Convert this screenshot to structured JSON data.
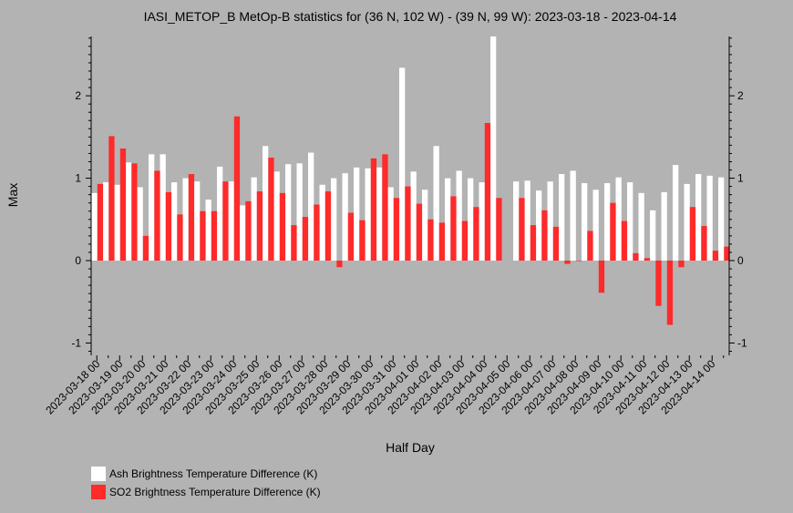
{
  "chart_data": {
    "type": "bar",
    "title": "IASI_METOP_B MetOp-B statistics for (36 N, 102 W) - (39 N, 99 W): 2023-03-18 - 2023-04-14",
    "xlabel": "Half Day",
    "ylabel": "Max",
    "ylim": [
      -1.15,
      2.72
    ],
    "yticks": [
      -1,
      0,
      1,
      2
    ],
    "grid": false,
    "legend_position": "bottom-left",
    "categories": [
      "2023-03-18 00",
      "2023-03-18 12",
      "2023-03-19 00",
      "2023-03-19 12",
      "2023-03-20 00",
      "2023-03-20 12",
      "2023-03-21 00",
      "2023-03-21 12",
      "2023-03-22 00",
      "2023-03-22 12",
      "2023-03-23 00",
      "2023-03-23 12",
      "2023-03-24 00",
      "2023-03-24 12",
      "2023-03-25 00",
      "2023-03-25 12",
      "2023-03-26 00",
      "2023-03-26 12",
      "2023-03-27 00",
      "2023-03-27 12",
      "2023-03-28 00",
      "2023-03-28 12",
      "2023-03-29 00",
      "2023-03-29 12",
      "2023-03-30 00",
      "2023-03-30 12",
      "2023-03-31 00",
      "2023-03-31 12",
      "2023-04-01 00",
      "2023-04-01 12",
      "2023-04-02 00",
      "2023-04-02 12",
      "2023-04-03 00",
      "2023-04-03 12",
      "2023-04-04 00",
      "2023-04-04 12",
      "2023-04-05 00",
      "2023-04-05 12",
      "2023-04-06 00",
      "2023-04-06 12",
      "2023-04-07 00",
      "2023-04-07 12",
      "2023-04-08 00",
      "2023-04-08 12",
      "2023-04-09 00",
      "2023-04-09 12",
      "2023-04-10 00",
      "2023-04-10 12",
      "2023-04-11 00",
      "2023-04-11 12",
      "2023-04-12 00",
      "2023-04-12 12",
      "2023-04-13 00",
      "2023-04-13 12",
      "2023-04-14 00",
      "2023-04-14 12"
    ],
    "tick_labels": [
      "2023-03-18 00",
      "2023-03-19 00",
      "2023-03-20 00",
      "2023-03-21 00",
      "2023-03-22 00",
      "2023-03-23 00",
      "2023-03-24 00",
      "2023-03-25 00",
      "2023-03-26 00",
      "2023-03-27 00",
      "2023-03-28 00",
      "2023-03-29 00",
      "2023-03-30 00",
      "2023-03-31 00",
      "2023-04-01 00",
      "2023-04-02 00",
      "2023-04-03 00",
      "2023-04-04 00",
      "2023-04-05 00",
      "2023-04-06 00",
      "2023-04-07 00",
      "2023-04-08 00",
      "2023-04-09 00",
      "2023-04-10 00",
      "2023-04-11 00",
      "2023-04-12 00",
      "2023-04-13 00",
      "2023-04-14 00"
    ],
    "series": [
      {
        "name": "Ash Brightness Temperature Difference (K)",
        "color": "#ffffff",
        "values": [
          0.82,
          0.95,
          0.92,
          1.19,
          0.89,
          1.29,
          1.29,
          0.95,
          1.0,
          0.96,
          0.74,
          1.14,
          0.96,
          0.67,
          1.01,
          1.39,
          1.08,
          1.17,
          1.18,
          1.31,
          0.92,
          1.0,
          1.06,
          1.13,
          1.12,
          1.13,
          0.89,
          2.34,
          1.08,
          0.86,
          1.39,
          1.0,
          1.09,
          1.0,
          0.95,
          2.72,
          null,
          0.96,
          0.97,
          0.85,
          0.96,
          1.05,
          1.09,
          0.94,
          0.86,
          0.94,
          1.01,
          0.95,
          0.82,
          0.61,
          0.83,
          1.16,
          0.93,
          1.05,
          1.03,
          1.01
        ]
      },
      {
        "name": "SO2 Brightness Temperature Difference (K)",
        "color": "#ff2a2a",
        "values": [
          0.93,
          1.51,
          1.36,
          1.18,
          0.3,
          1.09,
          0.83,
          0.56,
          1.05,
          0.6,
          0.6,
          0.96,
          1.75,
          0.72,
          0.84,
          1.25,
          0.82,
          0.43,
          0.53,
          0.68,
          0.84,
          -0.08,
          0.58,
          0.49,
          1.24,
          1.29,
          0.76,
          0.9,
          0.69,
          0.5,
          0.46,
          0.78,
          0.48,
          0.65,
          1.67,
          0.76,
          null,
          0.76,
          0.43,
          0.61,
          0.41,
          -0.04,
          0.0,
          0.36,
          -0.39,
          0.7,
          0.48,
          0.09,
          0.03,
          -0.55,
          -0.78,
          -0.08,
          0.65,
          0.42,
          0.12,
          0.17
        ]
      }
    ]
  }
}
